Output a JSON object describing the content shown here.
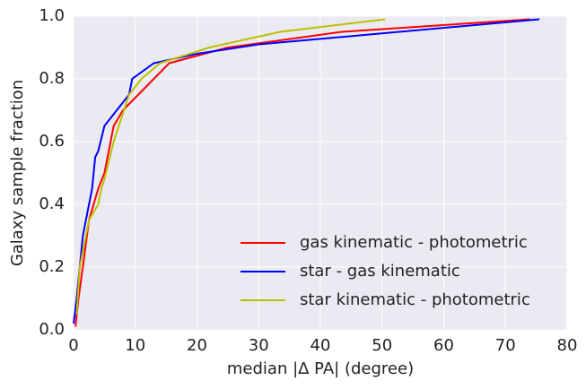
{
  "chart_data": {
    "type": "line",
    "x_label": "median |Δ PA| (degree)",
    "y_label": "Galaxy sample fraction",
    "xlim": [
      0,
      80
    ],
    "xticks": [
      0,
      10,
      20,
      30,
      40,
      50,
      60,
      70,
      80
    ],
    "ylim": [
      0,
      1
    ],
    "yticks": [
      {
        "value": 0,
        "label": "0.0"
      },
      {
        "value": 0.2,
        "label": "0.2"
      },
      {
        "value": 0.4,
        "label": "0.4"
      },
      {
        "value": 0.6,
        "label": "0.6"
      },
      {
        "value": 0.8,
        "label": "0.8"
      },
      {
        "value": 1,
        "label": "1.0"
      }
    ],
    "grid": true,
    "legend": "lower right",
    "series": [
      {
        "name": "gas kinematic - photometric",
        "color": "#ff0000",
        "x": [
          0.3,
          0.8,
          1.5,
          2.5,
          4,
          5,
          6.5,
          8,
          10.5,
          15.5,
          25,
          43.5,
          74
        ],
        "values": [
          0.01,
          0.1,
          0.2,
          0.35,
          0.45,
          0.5,
          0.65,
          0.7,
          0.75,
          0.85,
          0.9,
          0.95,
          0.99
        ]
      },
      {
        "name": "star - gas kinematic",
        "color": "#0000ff",
        "x": [
          0,
          0.5,
          1.5,
          3,
          3.5,
          4,
          5,
          7,
          9,
          9.5,
          13,
          20,
          30,
          75.5
        ],
        "values": [
          0.02,
          0.1,
          0.3,
          0.45,
          0.55,
          0.57,
          0.65,
          0.7,
          0.75,
          0.8,
          0.85,
          0.88,
          0.91,
          0.99
        ]
      },
      {
        "name": "star kinematic - photometric",
        "color": "#bfbf00",
        "x": [
          0.5,
          1,
          2.5,
          4,
          4.5,
          5,
          6.5,
          9,
          11,
          14,
          22,
          33.5,
          50.5
        ],
        "values": [
          0.05,
          0.2,
          0.35,
          0.4,
          0.45,
          0.48,
          0.6,
          0.75,
          0.8,
          0.85,
          0.9,
          0.95,
          0.99
        ]
      }
    ]
  }
}
